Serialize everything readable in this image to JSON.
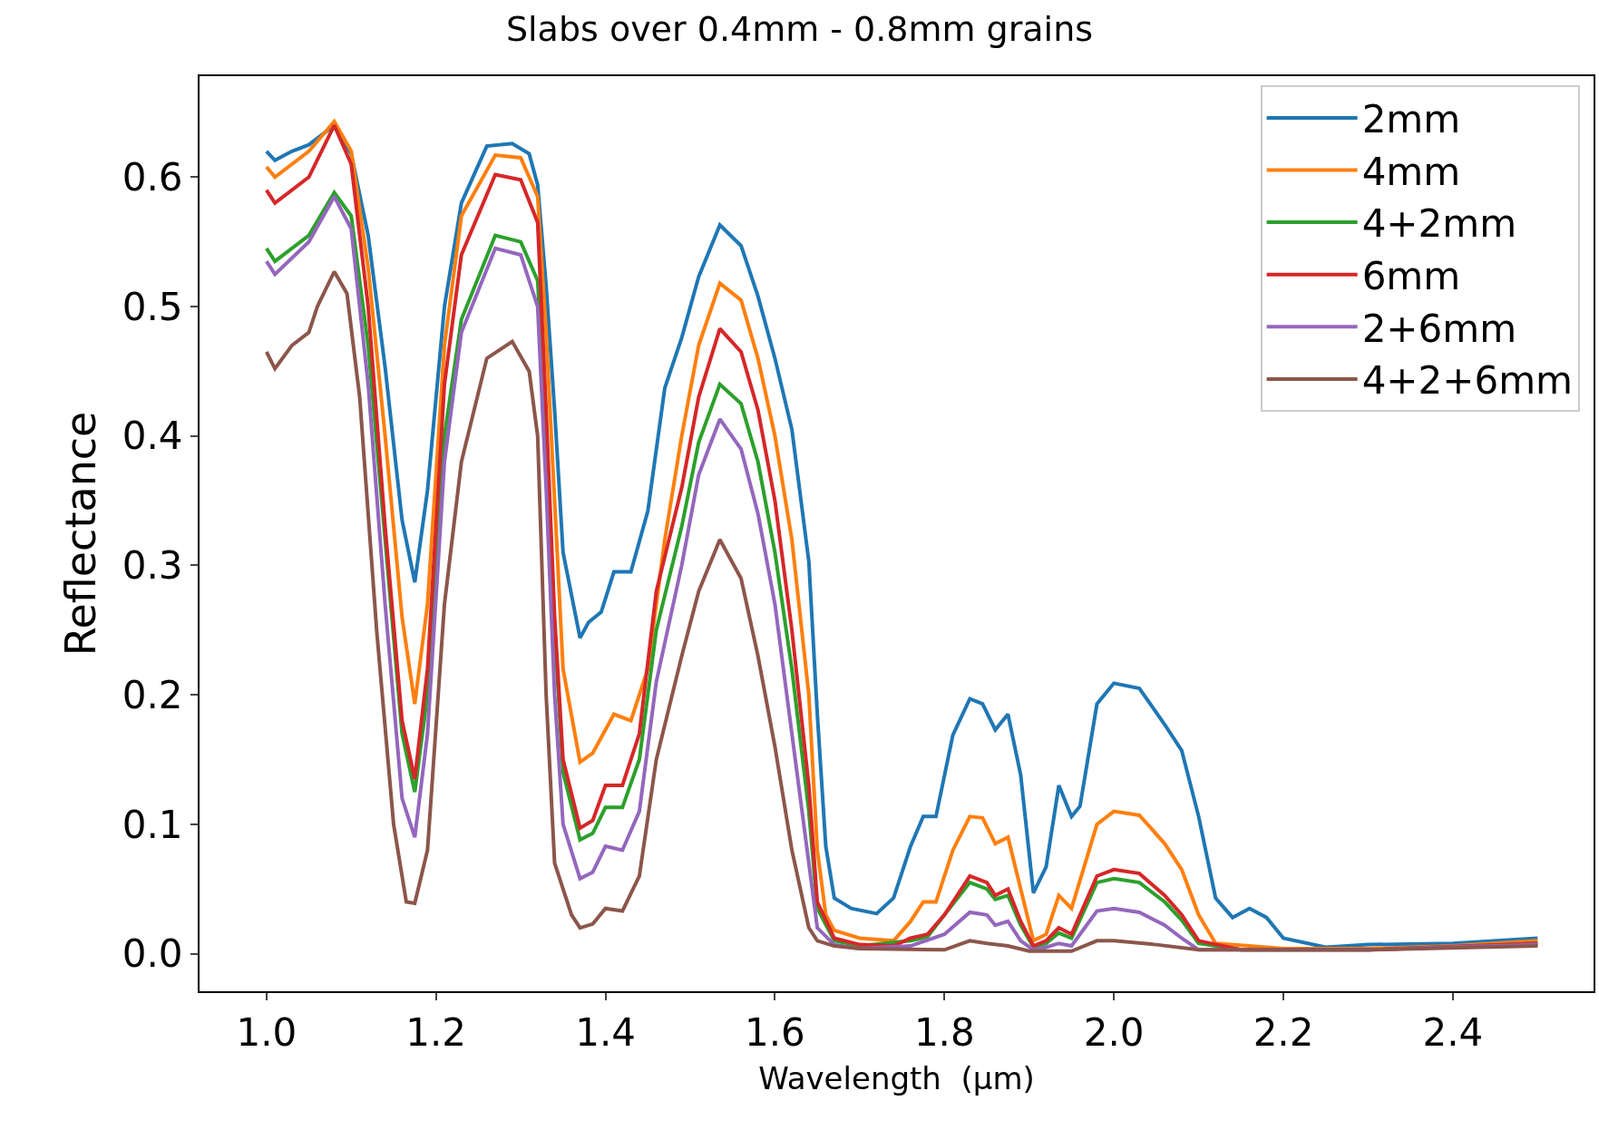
{
  "chart_data": {
    "type": "line",
    "title": "Slabs over 0.4mm - 0.8mm grains",
    "xlabel": "Wavelength  (µm)",
    "ylabel": "Reflectance",
    "xlim": [
      0.921,
      2.566
    ],
    "ylim": [
      -0.029,
      0.678
    ],
    "xticks": [
      {
        "value": 1,
        "label": "1.0"
      },
      {
        "value": 1.2,
        "label": "1.2"
      },
      {
        "value": 1.4,
        "label": "1.4"
      },
      {
        "value": 1.6,
        "label": "1.6"
      },
      {
        "value": 1.8,
        "label": "1.8"
      },
      {
        "value": 2,
        "label": "2.0"
      },
      {
        "value": 2.2,
        "label": "2.2"
      },
      {
        "value": 2.4,
        "label": "2.4"
      }
    ],
    "yticks": [
      {
        "value": 0,
        "label": "0.0"
      },
      {
        "value": 0.1,
        "label": "0.1"
      },
      {
        "value": 0.2,
        "label": "0.2"
      },
      {
        "value": 0.3,
        "label": "0.3"
      },
      {
        "value": 0.4,
        "label": "0.4"
      },
      {
        "value": 0.5,
        "label": "0.5"
      },
      {
        "value": 0.6,
        "label": "0.6"
      }
    ],
    "legend": "top right",
    "line_style": "solid",
    "marker": "none",
    "series": [
      {
        "name": "2mm",
        "color": "#1f77b4",
        "x": [
          1.0,
          1.01,
          1.03,
          1.05,
          1.08,
          1.1,
          1.12,
          1.14,
          1.16,
          1.175,
          1.19,
          1.21,
          1.23,
          1.26,
          1.29,
          1.31,
          1.32,
          1.33,
          1.34,
          1.35,
          1.37,
          1.38,
          1.395,
          1.41,
          1.43,
          1.45,
          1.47,
          1.49,
          1.51,
          1.535,
          1.56,
          1.58,
          1.6,
          1.62,
          1.64,
          1.65,
          1.66,
          1.67,
          1.69,
          1.72,
          1.74,
          1.76,
          1.775,
          1.79,
          1.81,
          1.83,
          1.845,
          1.86,
          1.875,
          1.89,
          1.905,
          1.92,
          1.935,
          1.95,
          1.96,
          1.98,
          2.0,
          2.03,
          2.06,
          2.08,
          2.1,
          2.12,
          2.14,
          2.16,
          2.18,
          2.2,
          2.25,
          2.3,
          2.4,
          2.5
        ],
        "values": [
          0.62,
          0.613,
          0.62,
          0.625,
          0.64,
          0.618,
          0.555,
          0.453,
          0.335,
          0.287,
          0.358,
          0.5,
          0.58,
          0.624,
          0.626,
          0.618,
          0.594,
          0.516,
          0.42,
          0.31,
          0.244,
          0.256,
          0.264,
          0.295,
          0.295,
          0.342,
          0.437,
          0.476,
          0.523,
          0.563,
          0.547,
          0.508,
          0.46,
          0.405,
          0.303,
          0.185,
          0.083,
          0.043,
          0.035,
          0.031,
          0.043,
          0.083,
          0.106,
          0.106,
          0.169,
          0.197,
          0.193,
          0.173,
          0.185,
          0.138,
          0.047,
          0.067,
          0.13,
          0.106,
          0.114,
          0.193,
          0.209,
          0.205,
          0.177,
          0.157,
          0.106,
          0.043,
          0.028,
          0.035,
          0.028,
          0.012,
          0.005,
          0.007,
          0.008,
          0.012
        ]
      },
      {
        "name": "4mm",
        "color": "#ff7f0e",
        "x": [
          1.0,
          1.01,
          1.05,
          1.08,
          1.1,
          1.12,
          1.14,
          1.16,
          1.175,
          1.19,
          1.21,
          1.23,
          1.27,
          1.3,
          1.32,
          1.33,
          1.34,
          1.35,
          1.37,
          1.385,
          1.41,
          1.43,
          1.45,
          1.47,
          1.49,
          1.51,
          1.535,
          1.56,
          1.58,
          1.6,
          1.62,
          1.64,
          1.65,
          1.66,
          1.67,
          1.7,
          1.74,
          1.76,
          1.775,
          1.79,
          1.81,
          1.83,
          1.845,
          1.86,
          1.875,
          1.89,
          1.905,
          1.92,
          1.935,
          1.95,
          1.98,
          2.0,
          2.03,
          2.06,
          2.08,
          2.1,
          2.12,
          2.16,
          2.2,
          2.3,
          2.4,
          2.5
        ],
        "values": [
          0.608,
          0.6,
          0.62,
          0.643,
          0.62,
          0.53,
          0.4,
          0.26,
          0.193,
          0.27,
          0.47,
          0.57,
          0.617,
          0.615,
          0.585,
          0.48,
          0.35,
          0.22,
          0.148,
          0.155,
          0.185,
          0.18,
          0.22,
          0.32,
          0.4,
          0.47,
          0.518,
          0.505,
          0.46,
          0.4,
          0.32,
          0.2,
          0.08,
          0.03,
          0.018,
          0.012,
          0.01,
          0.025,
          0.04,
          0.04,
          0.08,
          0.106,
          0.105,
          0.085,
          0.09,
          0.05,
          0.01,
          0.015,
          0.045,
          0.035,
          0.1,
          0.11,
          0.107,
          0.085,
          0.065,
          0.03,
          0.008,
          0.006,
          0.004,
          0.004,
          0.006,
          0.01
        ]
      },
      {
        "name": "4+2mm",
        "color": "#2ca02c",
        "x": [
          1.0,
          1.01,
          1.05,
          1.08,
          1.1,
          1.12,
          1.14,
          1.16,
          1.175,
          1.19,
          1.21,
          1.23,
          1.27,
          1.3,
          1.32,
          1.33,
          1.34,
          1.35,
          1.37,
          1.385,
          1.4,
          1.42,
          1.44,
          1.46,
          1.49,
          1.51,
          1.535,
          1.56,
          1.58,
          1.6,
          1.62,
          1.64,
          1.65,
          1.67,
          1.7,
          1.76,
          1.78,
          1.8,
          1.83,
          1.85,
          1.86,
          1.875,
          1.89,
          1.905,
          1.92,
          1.935,
          1.95,
          1.98,
          2.0,
          2.03,
          2.06,
          2.08,
          2.1,
          2.15,
          2.3,
          2.5
        ],
        "values": [
          0.545,
          0.535,
          0.555,
          0.588,
          0.57,
          0.47,
          0.32,
          0.17,
          0.125,
          0.2,
          0.4,
          0.49,
          0.555,
          0.55,
          0.52,
          0.4,
          0.25,
          0.14,
          0.088,
          0.093,
          0.113,
          0.113,
          0.15,
          0.25,
          0.33,
          0.395,
          0.44,
          0.425,
          0.38,
          0.31,
          0.22,
          0.11,
          0.035,
          0.01,
          0.006,
          0.01,
          0.013,
          0.03,
          0.055,
          0.05,
          0.042,
          0.045,
          0.022,
          0.005,
          0.008,
          0.016,
          0.012,
          0.055,
          0.058,
          0.055,
          0.04,
          0.026,
          0.008,
          0.003,
          0.003,
          0.008
        ]
      },
      {
        "name": "6mm",
        "color": "#d62728",
        "x": [
          1.0,
          1.01,
          1.05,
          1.08,
          1.1,
          1.12,
          1.14,
          1.16,
          1.175,
          1.19,
          1.21,
          1.23,
          1.27,
          1.3,
          1.32,
          1.33,
          1.34,
          1.35,
          1.37,
          1.385,
          1.4,
          1.42,
          1.44,
          1.46,
          1.49,
          1.51,
          1.535,
          1.56,
          1.58,
          1.6,
          1.62,
          1.64,
          1.65,
          1.67,
          1.7,
          1.74,
          1.76,
          1.78,
          1.8,
          1.83,
          1.85,
          1.86,
          1.875,
          1.89,
          1.905,
          1.92,
          1.935,
          1.95,
          1.98,
          2.0,
          2.03,
          2.06,
          2.08,
          2.1,
          2.15,
          2.3,
          2.5
        ],
        "values": [
          0.59,
          0.58,
          0.6,
          0.64,
          0.61,
          0.5,
          0.33,
          0.18,
          0.135,
          0.22,
          0.44,
          0.54,
          0.602,
          0.598,
          0.565,
          0.42,
          0.26,
          0.15,
          0.097,
          0.103,
          0.13,
          0.13,
          0.17,
          0.28,
          0.36,
          0.43,
          0.483,
          0.465,
          0.42,
          0.35,
          0.25,
          0.13,
          0.04,
          0.012,
          0.007,
          0.006,
          0.012,
          0.015,
          0.03,
          0.06,
          0.055,
          0.045,
          0.05,
          0.025,
          0.006,
          0.01,
          0.02,
          0.015,
          0.06,
          0.065,
          0.062,
          0.045,
          0.03,
          0.01,
          0.003,
          0.003,
          0.008
        ]
      },
      {
        "name": "2+6mm",
        "color": "#9467bd",
        "x": [
          1.0,
          1.01,
          1.05,
          1.08,
          1.1,
          1.12,
          1.14,
          1.16,
          1.175,
          1.19,
          1.21,
          1.23,
          1.27,
          1.3,
          1.32,
          1.33,
          1.34,
          1.35,
          1.37,
          1.385,
          1.4,
          1.42,
          1.44,
          1.46,
          1.49,
          1.51,
          1.535,
          1.56,
          1.58,
          1.6,
          1.62,
          1.64,
          1.65,
          1.67,
          1.7,
          1.76,
          1.8,
          1.83,
          1.85,
          1.86,
          1.875,
          1.89,
          1.905,
          1.92,
          1.935,
          1.95,
          1.98,
          2.0,
          2.03,
          2.06,
          2.08,
          2.1,
          2.3,
          2.5
        ],
        "values": [
          0.535,
          0.525,
          0.55,
          0.585,
          0.56,
          0.44,
          0.27,
          0.12,
          0.09,
          0.17,
          0.38,
          0.48,
          0.545,
          0.54,
          0.5,
          0.36,
          0.2,
          0.1,
          0.058,
          0.063,
          0.083,
          0.08,
          0.11,
          0.21,
          0.3,
          0.37,
          0.413,
          0.39,
          0.34,
          0.27,
          0.17,
          0.07,
          0.02,
          0.007,
          0.004,
          0.006,
          0.015,
          0.032,
          0.03,
          0.022,
          0.025,
          0.01,
          0.003,
          0.005,
          0.008,
          0.006,
          0.033,
          0.035,
          0.032,
          0.022,
          0.012,
          0.003,
          0.003,
          0.007
        ]
      },
      {
        "name": "4+2+6mm",
        "color": "#8c564b",
        "x": [
          1.0,
          1.01,
          1.03,
          1.05,
          1.06,
          1.08,
          1.095,
          1.11,
          1.13,
          1.15,
          1.165,
          1.175,
          1.19,
          1.21,
          1.23,
          1.26,
          1.29,
          1.31,
          1.32,
          1.33,
          1.34,
          1.36,
          1.37,
          1.385,
          1.4,
          1.42,
          1.44,
          1.46,
          1.49,
          1.51,
          1.535,
          1.56,
          1.58,
          1.6,
          1.62,
          1.64,
          1.65,
          1.67,
          1.7,
          1.8,
          1.83,
          1.85,
          1.875,
          1.9,
          1.95,
          1.98,
          2.0,
          2.05,
          2.1,
          2.3,
          2.5
        ],
        "values": [
          0.465,
          0.452,
          0.47,
          0.48,
          0.5,
          0.527,
          0.51,
          0.43,
          0.25,
          0.1,
          0.04,
          0.039,
          0.08,
          0.27,
          0.38,
          0.46,
          0.473,
          0.45,
          0.4,
          0.2,
          0.07,
          0.03,
          0.02,
          0.023,
          0.035,
          0.033,
          0.06,
          0.15,
          0.23,
          0.28,
          0.32,
          0.29,
          0.23,
          0.16,
          0.08,
          0.02,
          0.01,
          0.006,
          0.004,
          0.003,
          0.01,
          0.008,
          0.006,
          0.002,
          0.002,
          0.01,
          0.01,
          0.007,
          0.003,
          0.003,
          0.006
        ]
      }
    ]
  }
}
